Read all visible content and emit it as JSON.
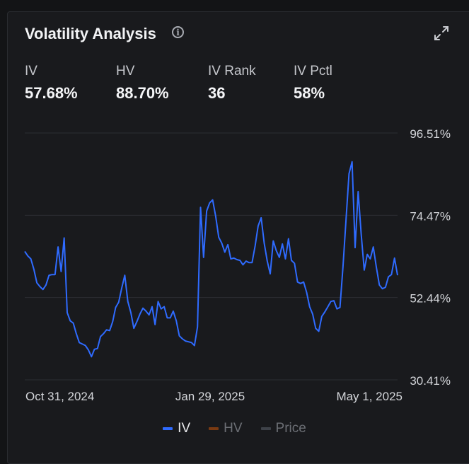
{
  "header": {
    "title": "Volatility Analysis",
    "info_icon": "info-icon",
    "expand_icon": "expand-icon"
  },
  "stats": [
    {
      "label": "IV",
      "value": "57.68%"
    },
    {
      "label": "HV",
      "value": "88.70%"
    },
    {
      "label": "IV Rank",
      "value": "36"
    },
    {
      "label": "IV Pctl",
      "value": "58%"
    }
  ],
  "colors": {
    "iv": "#2f6bff",
    "hv": "#7a3a12",
    "price": "#3e4249",
    "grid": "#2c2e33",
    "axis_text": "#d4d6da"
  },
  "chart_data": {
    "type": "line",
    "title": "",
    "xlabel": "",
    "ylabel": "",
    "ylim": [
      30.41,
      96.51
    ],
    "yticks": [
      "96.51%",
      "74.47%",
      "52.44%",
      "30.41%"
    ],
    "ytick_values": [
      96.51,
      74.47,
      52.44,
      30.41
    ],
    "xticks": [
      "Oct 31, 2024",
      "Jan 29, 2025",
      "May 1, 2025"
    ],
    "grid": true,
    "legend_position": "bottom",
    "legend": [
      {
        "name": "IV",
        "active": true
      },
      {
        "name": "HV",
        "active": false
      },
      {
        "name": "Price",
        "active": false
      }
    ],
    "series": [
      {
        "name": "IV",
        "values": [
          64.8,
          63.6,
          62.8,
          60.0,
          56.4,
          55.4,
          54.6,
          55.8,
          58.4,
          58.6,
          58.6,
          66.0,
          59.4,
          68.4,
          48.4,
          46.2,
          45.6,
          42.8,
          40.4,
          40.0,
          39.6,
          38.4,
          36.6,
          38.6,
          38.8,
          42.0,
          42.8,
          43.8,
          43.6,
          46.0,
          49.8,
          51.2,
          55.0,
          58.4,
          51.4,
          48.4,
          44.2,
          46.0,
          48.0,
          49.6,
          48.8,
          47.8,
          50.0,
          45.2,
          51.4,
          49.4,
          50.0,
          47.0,
          47.0,
          48.8,
          46.2,
          42.2,
          41.4,
          40.8,
          40.6,
          40.4,
          39.6,
          44.6,
          76.6,
          63.2,
          75.6,
          77.8,
          78.6,
          74.2,
          68.6,
          67.0,
          64.6,
          66.6,
          62.8,
          63.0,
          62.6,
          62.4,
          61.2,
          62.2,
          61.8,
          61.8,
          66.2,
          71.6,
          73.8,
          67.0,
          62.2,
          58.8,
          67.6,
          65.0,
          63.2,
          66.8,
          62.8,
          68.2,
          62.4,
          61.6,
          56.6,
          56.2,
          56.6,
          53.8,
          50.0,
          48.0,
          44.2,
          43.4,
          47.4,
          48.6,
          50.0,
          51.4,
          51.6,
          49.4,
          49.8,
          60.8,
          73.4,
          85.6,
          88.8,
          65.8,
          80.8,
          69.4,
          59.8,
          64.0,
          62.8,
          66.0,
          60.6,
          55.8,
          54.8,
          55.2,
          58.0,
          58.6,
          63.0,
          58.4
        ]
      }
    ]
  }
}
